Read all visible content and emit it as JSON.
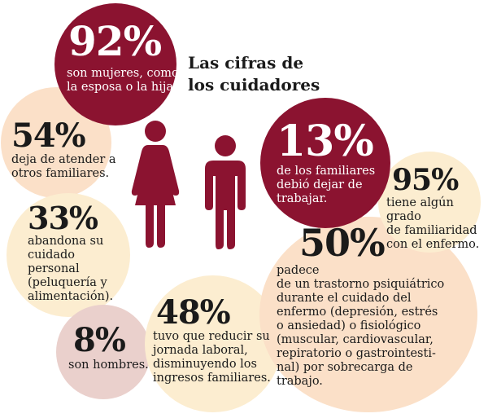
{
  "title_lines": [
    "Las cifras de",
    "los cuidadores"
  ],
  "colors": {
    "dark": "#8b1330",
    "peach": "#fbe0c8",
    "cream": "#fcedd0",
    "pink_gray": "#ead0cc"
  },
  "icons": [
    "woman-icon",
    "man-icon"
  ],
  "stats": {
    "women": {
      "value": "92%",
      "lines": [
        "son mujeres, como",
        "la esposa o la hija."
      ]
    },
    "others": {
      "value": "54%",
      "lines": [
        "deja de atender a",
        "otros familiares."
      ]
    },
    "quit": {
      "value": "13%",
      "lines": [
        "de los familiares",
        "debió dejar de",
        "trabajar."
      ]
    },
    "relatives": {
      "value": "95%",
      "lines": [
        "tiene algún grado",
        "de familiaridad",
        "con el enfermo."
      ]
    },
    "selfcare": {
      "value": "33%",
      "lines": [
        "abandona su",
        "cuidado",
        "personal",
        "(peluquería y",
        "alimentación)."
      ]
    },
    "disorder": {
      "value": "50%",
      "lines": [
        "padece",
        "de un trastorno psiquiátrico",
        "durante el cuidado del",
        "enfermo (depresión, estrés",
        "o ansiedad) o fisiológico",
        "(muscular, cardiovascular,",
        "repiratorio o gastrointesti-",
        "nal) por sobrecarga de",
        "trabajo."
      ]
    },
    "reduced": {
      "value": "48%",
      "lines": [
        "tuvo que reducir su",
        "jornada laboral,",
        "disminuyendo los",
        "ingresos familiares."
      ]
    },
    "men": {
      "value": "8%",
      "lines": [
        "son hombres."
      ]
    }
  }
}
